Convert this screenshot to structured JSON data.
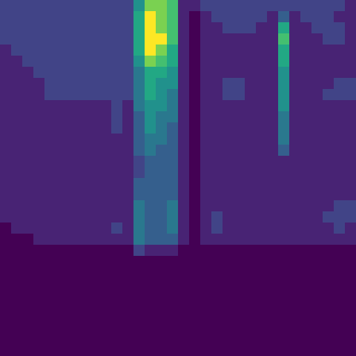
{
  "chart_data": {
    "type": "heatmap",
    "tick_labels": false,
    "zlim": [
      0,
      9
    ],
    "cells": [
      [
        2,
        2,
        2,
        2,
        2,
        2,
        2,
        2,
        2,
        2,
        2,
        2,
        5,
        8,
        8,
        7,
        1,
        1,
        2,
        2,
        2,
        2,
        2,
        2,
        2,
        2,
        2,
        2,
        2,
        2,
        2,
        1
      ],
      [
        2,
        2,
        2,
        2,
        2,
        2,
        2,
        2,
        2,
        2,
        2,
        2,
        6,
        9,
        8,
        7,
        1,
        0,
        1,
        2,
        2,
        2,
        2,
        2,
        1,
        3,
        1,
        2,
        2,
        2,
        1,
        1
      ],
      [
        2,
        2,
        2,
        2,
        2,
        2,
        2,
        2,
        2,
        2,
        2,
        2,
        6,
        9,
        8,
        7,
        1,
        0,
        1,
        1,
        2,
        2,
        2,
        1,
        1,
        6,
        1,
        1,
        2,
        2,
        2,
        1
      ],
      [
        2,
        2,
        2,
        2,
        2,
        2,
        2,
        2,
        2,
        2,
        2,
        2,
        6,
        9,
        9,
        7,
        1,
        0,
        1,
        1,
        1,
        1,
        1,
        1,
        1,
        7,
        1,
        1,
        1,
        2,
        2,
        1
      ],
      [
        1,
        2,
        2,
        2,
        2,
        2,
        2,
        2,
        2,
        2,
        2,
        2,
        6,
        9,
        8,
        6,
        1,
        0,
        1,
        1,
        1,
        1,
        1,
        1,
        1,
        6,
        1,
        1,
        1,
        1,
        1,
        1
      ],
      [
        1,
        1,
        2,
        2,
        2,
        2,
        2,
        2,
        2,
        2,
        2,
        2,
        5,
        8,
        7,
        6,
        1,
        0,
        1,
        1,
        1,
        1,
        1,
        1,
        1,
        6,
        1,
        1,
        1,
        1,
        1,
        1
      ],
      [
        1,
        1,
        1,
        2,
        2,
        2,
        2,
        2,
        2,
        2,
        2,
        2,
        4,
        6,
        6,
        5,
        1,
        0,
        1,
        1,
        1,
        1,
        1,
        1,
        1,
        5,
        1,
        1,
        1,
        1,
        1,
        1
      ],
      [
        1,
        1,
        1,
        1,
        2,
        2,
        2,
        2,
        2,
        2,
        2,
        2,
        4,
        6,
        5,
        5,
        1,
        0,
        1,
        1,
        2,
        2,
        1,
        1,
        1,
        5,
        1,
        1,
        1,
        1,
        2,
        2
      ],
      [
        1,
        1,
        1,
        1,
        2,
        2,
        2,
        2,
        2,
        2,
        2,
        2,
        4,
        6,
        5,
        4,
        1,
        0,
        1,
        1,
        2,
        2,
        1,
        1,
        1,
        5,
        1,
        1,
        1,
        2,
        2,
        2
      ],
      [
        1,
        1,
        1,
        1,
        1,
        1,
        1,
        1,
        1,
        1,
        2,
        1,
        4,
        5,
        5,
        4,
        1,
        0,
        1,
        1,
        1,
        1,
        1,
        1,
        1,
        5,
        1,
        1,
        1,
        1,
        1,
        1
      ],
      [
        1,
        1,
        1,
        1,
        1,
        1,
        1,
        1,
        1,
        1,
        2,
        1,
        3,
        5,
        4,
        4,
        1,
        0,
        1,
        1,
        1,
        1,
        1,
        1,
        1,
        4,
        1,
        1,
        1,
        1,
        1,
        1
      ],
      [
        1,
        1,
        1,
        1,
        1,
        1,
        1,
        1,
        1,
        1,
        2,
        1,
        3,
        5,
        4,
        3,
        1,
        0,
        1,
        1,
        1,
        1,
        1,
        1,
        1,
        4,
        1,
        1,
        1,
        1,
        1,
        1
      ],
      [
        1,
        1,
        1,
        1,
        1,
        1,
        1,
        1,
        1,
        1,
        1,
        1,
        3,
        4,
        4,
        3,
        1,
        0,
        1,
        1,
        1,
        1,
        1,
        1,
        1,
        4,
        1,
        1,
        1,
        1,
        1,
        1
      ],
      [
        1,
        1,
        1,
        1,
        1,
        1,
        1,
        1,
        1,
        1,
        1,
        1,
        3,
        4,
        3,
        3,
        1,
        0,
        1,
        1,
        1,
        1,
        1,
        1,
        1,
        3,
        1,
        1,
        1,
        1,
        1,
        1
      ],
      [
        1,
        1,
        1,
        1,
        1,
        1,
        1,
        1,
        1,
        1,
        1,
        1,
        2,
        3,
        3,
        3,
        1,
        0,
        1,
        1,
        1,
        1,
        1,
        1,
        1,
        1,
        1,
        1,
        1,
        1,
        1,
        1
      ],
      [
        1,
        1,
        1,
        1,
        1,
        1,
        1,
        1,
        1,
        1,
        1,
        1,
        2,
        3,
        3,
        3,
        1,
        0,
        1,
        1,
        1,
        1,
        1,
        1,
        1,
        1,
        1,
        1,
        1,
        1,
        1,
        1
      ],
      [
        1,
        1,
        1,
        1,
        1,
        1,
        1,
        1,
        1,
        1,
        1,
        1,
        3,
        3,
        3,
        3,
        1,
        0,
        1,
        1,
        1,
        1,
        1,
        1,
        1,
        1,
        1,
        1,
        1,
        1,
        1,
        1
      ],
      [
        1,
        1,
        1,
        1,
        1,
        1,
        1,
        1,
        1,
        1,
        1,
        1,
        3,
        3,
        3,
        3,
        1,
        0,
        1,
        1,
        1,
        1,
        1,
        1,
        1,
        1,
        1,
        1,
        1,
        1,
        1,
        1
      ],
      [
        1,
        1,
        1,
        1,
        1,
        1,
        1,
        1,
        1,
        1,
        1,
        1,
        4,
        3,
        3,
        4,
        1,
        0,
        1,
        1,
        1,
        1,
        1,
        1,
        1,
        1,
        1,
        1,
        1,
        1,
        2,
        2
      ],
      [
        1,
        1,
        1,
        1,
        1,
        1,
        1,
        1,
        1,
        1,
        1,
        1,
        4,
        3,
        3,
        4,
        1,
        0,
        1,
        2,
        1,
        1,
        1,
        1,
        1,
        1,
        1,
        1,
        1,
        2,
        2,
        2
      ],
      [
        0,
        1,
        1,
        1,
        1,
        1,
        1,
        1,
        1,
        1,
        2,
        1,
        4,
        3,
        3,
        4,
        1,
        0,
        1,
        2,
        1,
        1,
        1,
        1,
        1,
        1,
        1,
        1,
        1,
        1,
        2,
        1
      ],
      [
        0,
        0,
        0,
        1,
        1,
        1,
        1,
        1,
        1,
        1,
        1,
        1,
        4,
        3,
        3,
        3,
        1,
        0,
        1,
        1,
        1,
        1,
        1,
        1,
        1,
        1,
        1,
        1,
        1,
        1,
        1,
        1
      ],
      [
        0,
        0,
        0,
        0,
        0,
        0,
        0,
        0,
        0,
        0,
        0,
        0,
        2,
        1,
        1,
        1,
        0,
        0,
        0,
        0,
        0,
        0,
        0,
        0,
        0,
        0,
        0,
        0,
        0,
        0,
        0,
        0
      ],
      [
        0,
        0,
        0,
        0,
        0,
        0,
        0,
        0,
        0,
        0,
        0,
        0,
        0,
        0,
        0,
        0,
        0,
        0,
        0,
        0,
        0,
        0,
        0,
        0,
        0,
        0,
        0,
        0,
        0,
        0,
        0,
        0
      ],
      [
        0,
        0,
        0,
        0,
        0,
        0,
        0,
        0,
        0,
        0,
        0,
        0,
        0,
        0,
        0,
        0,
        0,
        0,
        0,
        0,
        0,
        0,
        0,
        0,
        0,
        0,
        0,
        0,
        0,
        0,
        0,
        0
      ],
      [
        0,
        0,
        0,
        0,
        0,
        0,
        0,
        0,
        0,
        0,
        0,
        0,
        0,
        0,
        0,
        0,
        0,
        0,
        0,
        0,
        0,
        0,
        0,
        0,
        0,
        0,
        0,
        0,
        0,
        0,
        0,
        0
      ],
      [
        0,
        0,
        0,
        0,
        0,
        0,
        0,
        0,
        0,
        0,
        0,
        0,
        0,
        0,
        0,
        0,
        0,
        0,
        0,
        0,
        0,
        0,
        0,
        0,
        0,
        0,
        0,
        0,
        0,
        0,
        0,
        0
      ],
      [
        0,
        0,
        0,
        0,
        0,
        0,
        0,
        0,
        0,
        0,
        0,
        0,
        0,
        0,
        0,
        0,
        0,
        0,
        0,
        0,
        0,
        0,
        0,
        0,
        0,
        0,
        0,
        0,
        0,
        0,
        0,
        0
      ],
      [
        0,
        0,
        0,
        0,
        0,
        0,
        0,
        0,
        0,
        0,
        0,
        0,
        0,
        0,
        0,
        0,
        0,
        0,
        0,
        0,
        0,
        0,
        0,
        0,
        0,
        0,
        0,
        0,
        0,
        0,
        0,
        0
      ],
      [
        0,
        0,
        0,
        0,
        0,
        0,
        0,
        0,
        0,
        0,
        0,
        0,
        0,
        0,
        0,
        0,
        0,
        0,
        0,
        0,
        0,
        0,
        0,
        0,
        0,
        0,
        0,
        0,
        0,
        0,
        0,
        0
      ],
      [
        0,
        0,
        0,
        0,
        0,
        0,
        0,
        0,
        0,
        0,
        0,
        0,
        0,
        0,
        0,
        0,
        0,
        0,
        0,
        0,
        0,
        0,
        0,
        0,
        0,
        0,
        0,
        0,
        0,
        0,
        0,
        0
      ],
      [
        0,
        0,
        0,
        0,
        0,
        0,
        0,
        0,
        0,
        0,
        0,
        0,
        0,
        0,
        0,
        0,
        0,
        0,
        0,
        0,
        0,
        0,
        0,
        0,
        0,
        0,
        0,
        0,
        0,
        0,
        0,
        0
      ]
    ]
  }
}
